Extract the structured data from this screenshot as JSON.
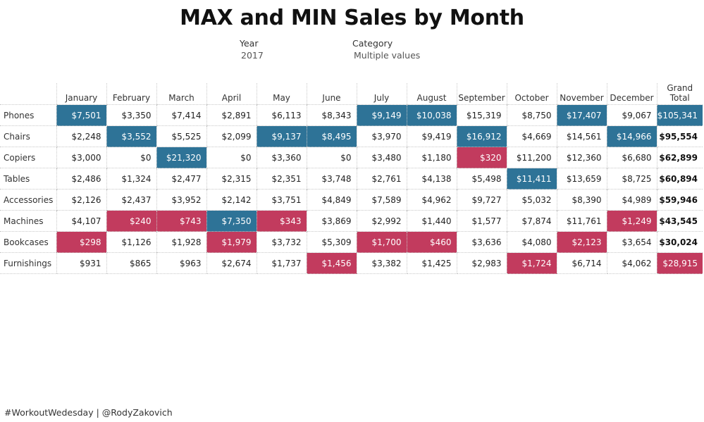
{
  "title": "MAX and MIN Sales by Month",
  "filters": {
    "year": {
      "label": "Year",
      "value": "2017"
    },
    "category": {
      "label": "Category",
      "value": "Multiple values"
    }
  },
  "footer": "#WorkoutWedesday | @RodyZakovich",
  "colors": {
    "max": "#2e7397",
    "min": "#c23b5e"
  },
  "chart_data": {
    "type": "table",
    "title": "MAX and MIN Sales by Month",
    "columns": [
      "January",
      "February",
      "March",
      "April",
      "May",
      "June",
      "July",
      "August",
      "September",
      "October",
      "November",
      "December",
      "Grand Total"
    ],
    "rows": [
      {
        "label": "Phones",
        "values": [
          "$7,501",
          "$3,350",
          "$7,414",
          "$2,891",
          "$6,113",
          "$8,343",
          "$9,149",
          "$10,038",
          "$15,319",
          "$8,750",
          "$17,407",
          "$9,067",
          "$105,341"
        ],
        "highlight": [
          "max",
          "",
          "",
          "",
          "",
          "",
          "max",
          "max",
          "",
          "",
          "max",
          "",
          "max"
        ]
      },
      {
        "label": "Chairs",
        "values": [
          "$2,248",
          "$3,552",
          "$5,525",
          "$2,099",
          "$9,137",
          "$8,495",
          "$3,970",
          "$9,419",
          "$16,912",
          "$4,669",
          "$14,561",
          "$14,966",
          "$95,554"
        ],
        "highlight": [
          "",
          "max",
          "",
          "",
          "max",
          "max",
          "",
          "",
          "max",
          "",
          "",
          "max",
          ""
        ]
      },
      {
        "label": "Copiers",
        "values": [
          "$3,000",
          "$0",
          "$21,320",
          "$0",
          "$3,360",
          "$0",
          "$3,480",
          "$1,180",
          "$320",
          "$11,200",
          "$12,360",
          "$6,680",
          "$62,899"
        ],
        "highlight": [
          "",
          "",
          "max",
          "",
          "",
          "",
          "",
          "",
          "min",
          "",
          "",
          "",
          ""
        ]
      },
      {
        "label": "Tables",
        "values": [
          "$2,486",
          "$1,324",
          "$2,477",
          "$2,315",
          "$2,351",
          "$3,748",
          "$2,761",
          "$4,138",
          "$5,498",
          "$11,411",
          "$13,659",
          "$8,725",
          "$60,894"
        ],
        "highlight": [
          "",
          "",
          "",
          "",
          "",
          "",
          "",
          "",
          "",
          "max",
          "",
          "",
          ""
        ]
      },
      {
        "label": "Accessories",
        "values": [
          "$2,126",
          "$2,437",
          "$3,952",
          "$2,142",
          "$3,751",
          "$4,849",
          "$7,589",
          "$4,962",
          "$9,727",
          "$5,032",
          "$8,390",
          "$4,989",
          "$59,946"
        ],
        "highlight": [
          "",
          "",
          "",
          "",
          "",
          "",
          "",
          "",
          "",
          "",
          "",
          "",
          ""
        ]
      },
      {
        "label": "Machines",
        "values": [
          "$4,107",
          "$240",
          "$743",
          "$7,350",
          "$343",
          "$3,869",
          "$2,992",
          "$1,440",
          "$1,577",
          "$7,874",
          "$11,761",
          "$1,249",
          "$43,545"
        ],
        "highlight": [
          "",
          "min",
          "min",
          "max",
          "min",
          "",
          "",
          "",
          "",
          "",
          "",
          "min",
          ""
        ]
      },
      {
        "label": "Bookcases",
        "values": [
          "$298",
          "$1,126",
          "$1,928",
          "$1,979",
          "$3,732",
          "$5,309",
          "$1,700",
          "$460",
          "$3,636",
          "$4,080",
          "$2,123",
          "$3,654",
          "$30,024"
        ],
        "highlight": [
          "min",
          "",
          "",
          "min",
          "",
          "",
          "min",
          "min",
          "",
          "",
          "min",
          "",
          ""
        ]
      },
      {
        "label": "Furnishings",
        "values": [
          "$931",
          "$865",
          "$963",
          "$2,674",
          "$1,737",
          "$1,456",
          "$3,382",
          "$1,425",
          "$2,983",
          "$1,724",
          "$6,714",
          "$4,062",
          "$28,915"
        ],
        "highlight": [
          "",
          "",
          "",
          "",
          "",
          "min",
          "",
          "",
          "",
          "min",
          "",
          "",
          "min"
        ]
      }
    ]
  }
}
